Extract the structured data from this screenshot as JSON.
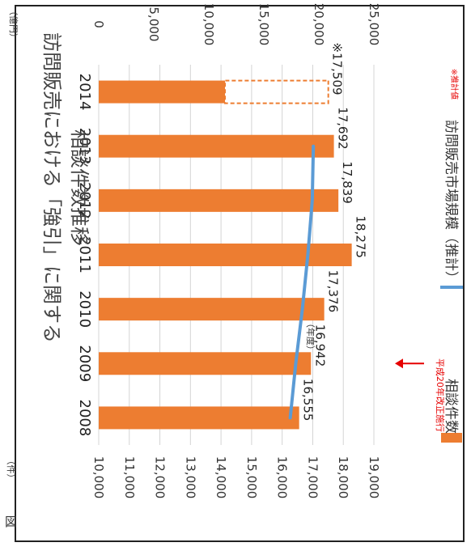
{
  "chart_data": {
    "type": "bar",
    "orientation": "rotated-90-clockwise",
    "title": "訪問販売における「強引」に関する\n相談件数推移",
    "xlabel": "（年度）",
    "categories": [
      "2008",
      "2009",
      "2010",
      "2011",
      "2012",
      "2013",
      "2014"
    ],
    "series": [
      {
        "name": "相談件数",
        "kind": "bar",
        "axis": "left",
        "unit": "（件）",
        "values": [
          16555,
          16942,
          17376,
          18275,
          17839,
          17692,
          17509
        ],
        "value_labels": [
          "16,555",
          "16,942",
          "17,376",
          "18,275",
          "17,839",
          "17,692",
          "※17,509"
        ],
        "estimated_flags": [
          false,
          false,
          false,
          false,
          false,
          false,
          true
        ],
        "color": "#ed7d31"
      },
      {
        "name": "訪問販売市場規模（推計）",
        "kind": "line",
        "axis": "right",
        "unit": "（億円）",
        "values": [
          17400,
          17900,
          18500,
          19000,
          19400,
          19500,
          null
        ],
        "color": "#5b9bd5"
      }
    ],
    "y_left": {
      "label": "（件）",
      "ylim": [
        10000,
        19000
      ],
      "ticks": [
        "10,000",
        "11,000",
        "12,000",
        "13,000",
        "14,000",
        "15,000",
        "16,000",
        "17,000",
        "18,000",
        "19,000"
      ]
    },
    "y_right": {
      "label": "（億円）",
      "ylim": [
        0,
        25000
      ],
      "ticks": [
        "0",
        "5,000",
        "10,000",
        "15,000",
        "20,000",
        "25,000"
      ]
    },
    "annotations": [
      {
        "text": "平成20年改正施行",
        "color": "#e60000",
        "category": "2009"
      },
      {
        "text": "※推計値",
        "color": "#e60000",
        "category": "2014"
      }
    ],
    "legend_position": "bottom",
    "grid": true
  },
  "side_text": "図"
}
